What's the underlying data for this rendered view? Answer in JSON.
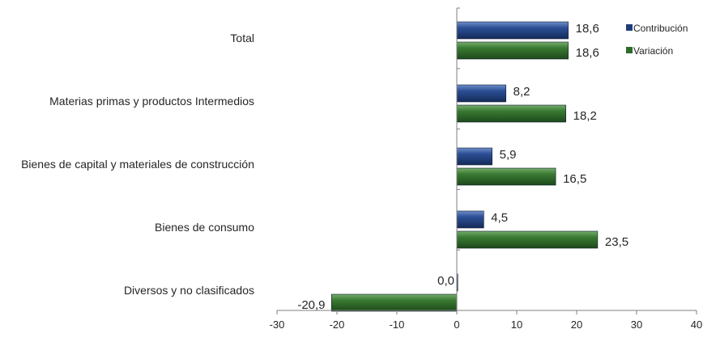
{
  "chart_data": {
    "type": "bar",
    "orientation": "horizontal",
    "categories": [
      "Total",
      "Materias primas y productos Intermedios",
      "Bienes de capital y materiales de construcción",
      "Bienes de consumo",
      "Diversos y no clasificados"
    ],
    "series": [
      {
        "name": "Contribución",
        "values": [
          18.6,
          8.2,
          5.9,
          4.5,
          0.0
        ],
        "labels": [
          "18,6",
          "8,2",
          "5,9",
          "4,5",
          "0,0"
        ],
        "color": "#1f3d7a"
      },
      {
        "name": "Variación",
        "values": [
          18.6,
          18.2,
          16.5,
          23.5,
          -20.9
        ],
        "labels": [
          "18,6",
          "18,2",
          "16,5",
          "23,5",
          "-20,9"
        ],
        "color": "#2e6b2a"
      }
    ],
    "xlim": [
      -30,
      40
    ],
    "xticks": [
      -30,
      -20,
      -10,
      0,
      10,
      20,
      30,
      40
    ],
    "xtick_labels": [
      "-30",
      "-20",
      "-10",
      "0",
      "10",
      "20",
      "30",
      "40"
    ],
    "grid": false,
    "legend_position": "top-right",
    "title": "",
    "xlabel": "",
    "ylabel": ""
  }
}
